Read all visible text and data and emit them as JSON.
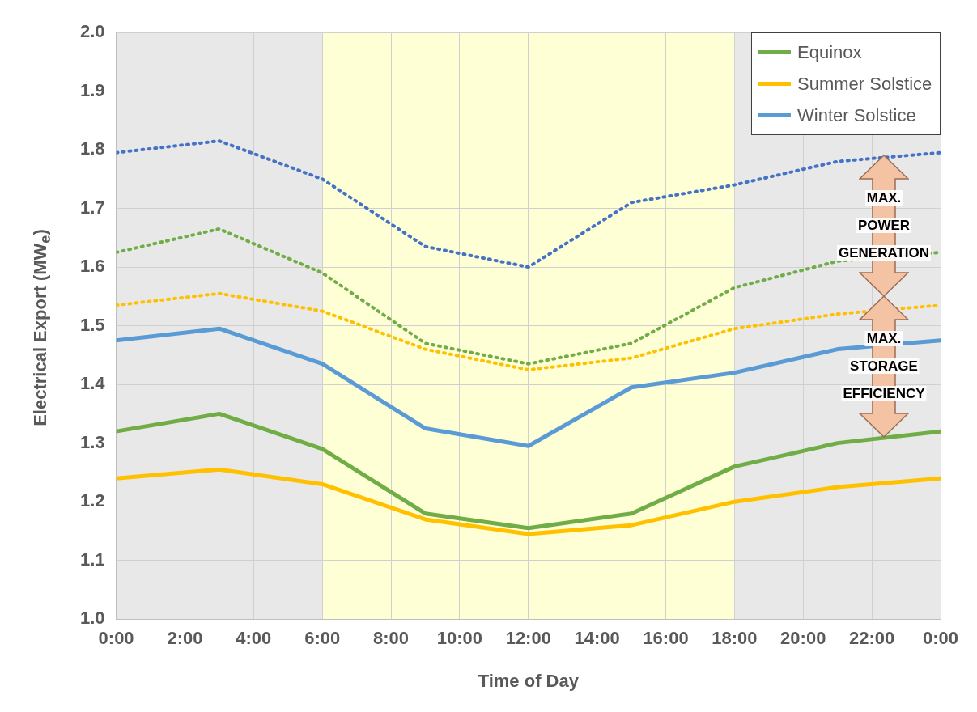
{
  "chart_data": {
    "type": "line",
    "xlabel": "Time of Day",
    "ylabel": "Electrical Export (MW$_{e}$)",
    "x": [
      0,
      3,
      6,
      9,
      12,
      15,
      18,
      21,
      24
    ],
    "series": [
      {
        "name": "Equinox",
        "color": "#70ad47",
        "line_style": "solid",
        "values": [
          1.32,
          1.35,
          1.29,
          1.18,
          1.155,
          1.18,
          1.26,
          1.3,
          1.32
        ]
      },
      {
        "name": "Summer Solstice",
        "color": "#ffc000",
        "line_style": "solid",
        "values": [
          1.24,
          1.255,
          1.23,
          1.17,
          1.145,
          1.16,
          1.2,
          1.225,
          1.24
        ]
      },
      {
        "name": "Winter Solstice",
        "color": "#5b9bd5",
        "line_style": "solid",
        "values": [
          1.475,
          1.495,
          1.435,
          1.325,
          1.295,
          1.395,
          1.42,
          1.46,
          1.475
        ]
      },
      {
        "color": "#70ad47",
        "line_style": "dotted",
        "values": [
          1.625,
          1.665,
          1.59,
          1.47,
          1.435,
          1.47,
          1.565,
          1.61,
          1.625
        ]
      },
      {
        "color": "#ffc000",
        "line_style": "dotted",
        "values": [
          1.535,
          1.555,
          1.525,
          1.46,
          1.425,
          1.445,
          1.495,
          1.52,
          1.535
        ]
      },
      {
        "color": "#4472c4",
        "line_style": "dotted",
        "values": [
          1.795,
          1.815,
          1.75,
          1.635,
          1.6,
          1.71,
          1.74,
          1.78,
          1.795
        ]
      }
    ],
    "xlim": [
      0,
      24
    ],
    "xticks": [
      {
        "value": 0,
        "label": "0:00"
      },
      {
        "value": 2,
        "label": "2:00"
      },
      {
        "value": 4,
        "label": "4:00"
      },
      {
        "value": 6,
        "label": "6:00"
      },
      {
        "value": 8,
        "label": "8:00"
      },
      {
        "value": 10,
        "label": "10:00"
      },
      {
        "value": 12,
        "label": "12:00"
      },
      {
        "value": 14,
        "label": "14:00"
      },
      {
        "value": 16,
        "label": "16:00"
      },
      {
        "value": 18,
        "label": "18:00"
      },
      {
        "value": 20,
        "label": "20:00"
      },
      {
        "value": 22,
        "label": "22:00"
      },
      {
        "value": 24,
        "label": "0:00"
      }
    ],
    "ylim": [
      1.0,
      2.0
    ],
    "yticks": [
      {
        "value": 1.0,
        "label": "1.0"
      },
      {
        "value": 1.1,
        "label": "1.1"
      },
      {
        "value": 1.2,
        "label": "1.2"
      },
      {
        "value": 1.3,
        "label": "1.3"
      },
      {
        "value": 1.4,
        "label": "1.4"
      },
      {
        "value": 1.5,
        "label": "1.5"
      },
      {
        "value": 1.6,
        "label": "1.6"
      },
      {
        "value": 1.7,
        "label": "1.7"
      },
      {
        "value": 1.8,
        "label": "1.8"
      },
      {
        "value": 1.9,
        "label": "1.9"
      },
      {
        "value": 2.0,
        "label": "2.0"
      }
    ],
    "bands": [
      {
        "axis": "x",
        "from": 0,
        "to": 6,
        "color": "#e8e8e8"
      },
      {
        "axis": "x",
        "from": 6,
        "to": 18,
        "color": "#ffffd6"
      },
      {
        "axis": "x",
        "from": 18,
        "to": 24,
        "color": "#e8e8e8"
      }
    ],
    "annotations": [
      "MAX.\nPOWER\nGENERATION",
      "MAX.\nSTORAGE\nEFFICIENCY"
    ],
    "grid": true,
    "legend": "top right",
    "marker": "none"
  }
}
